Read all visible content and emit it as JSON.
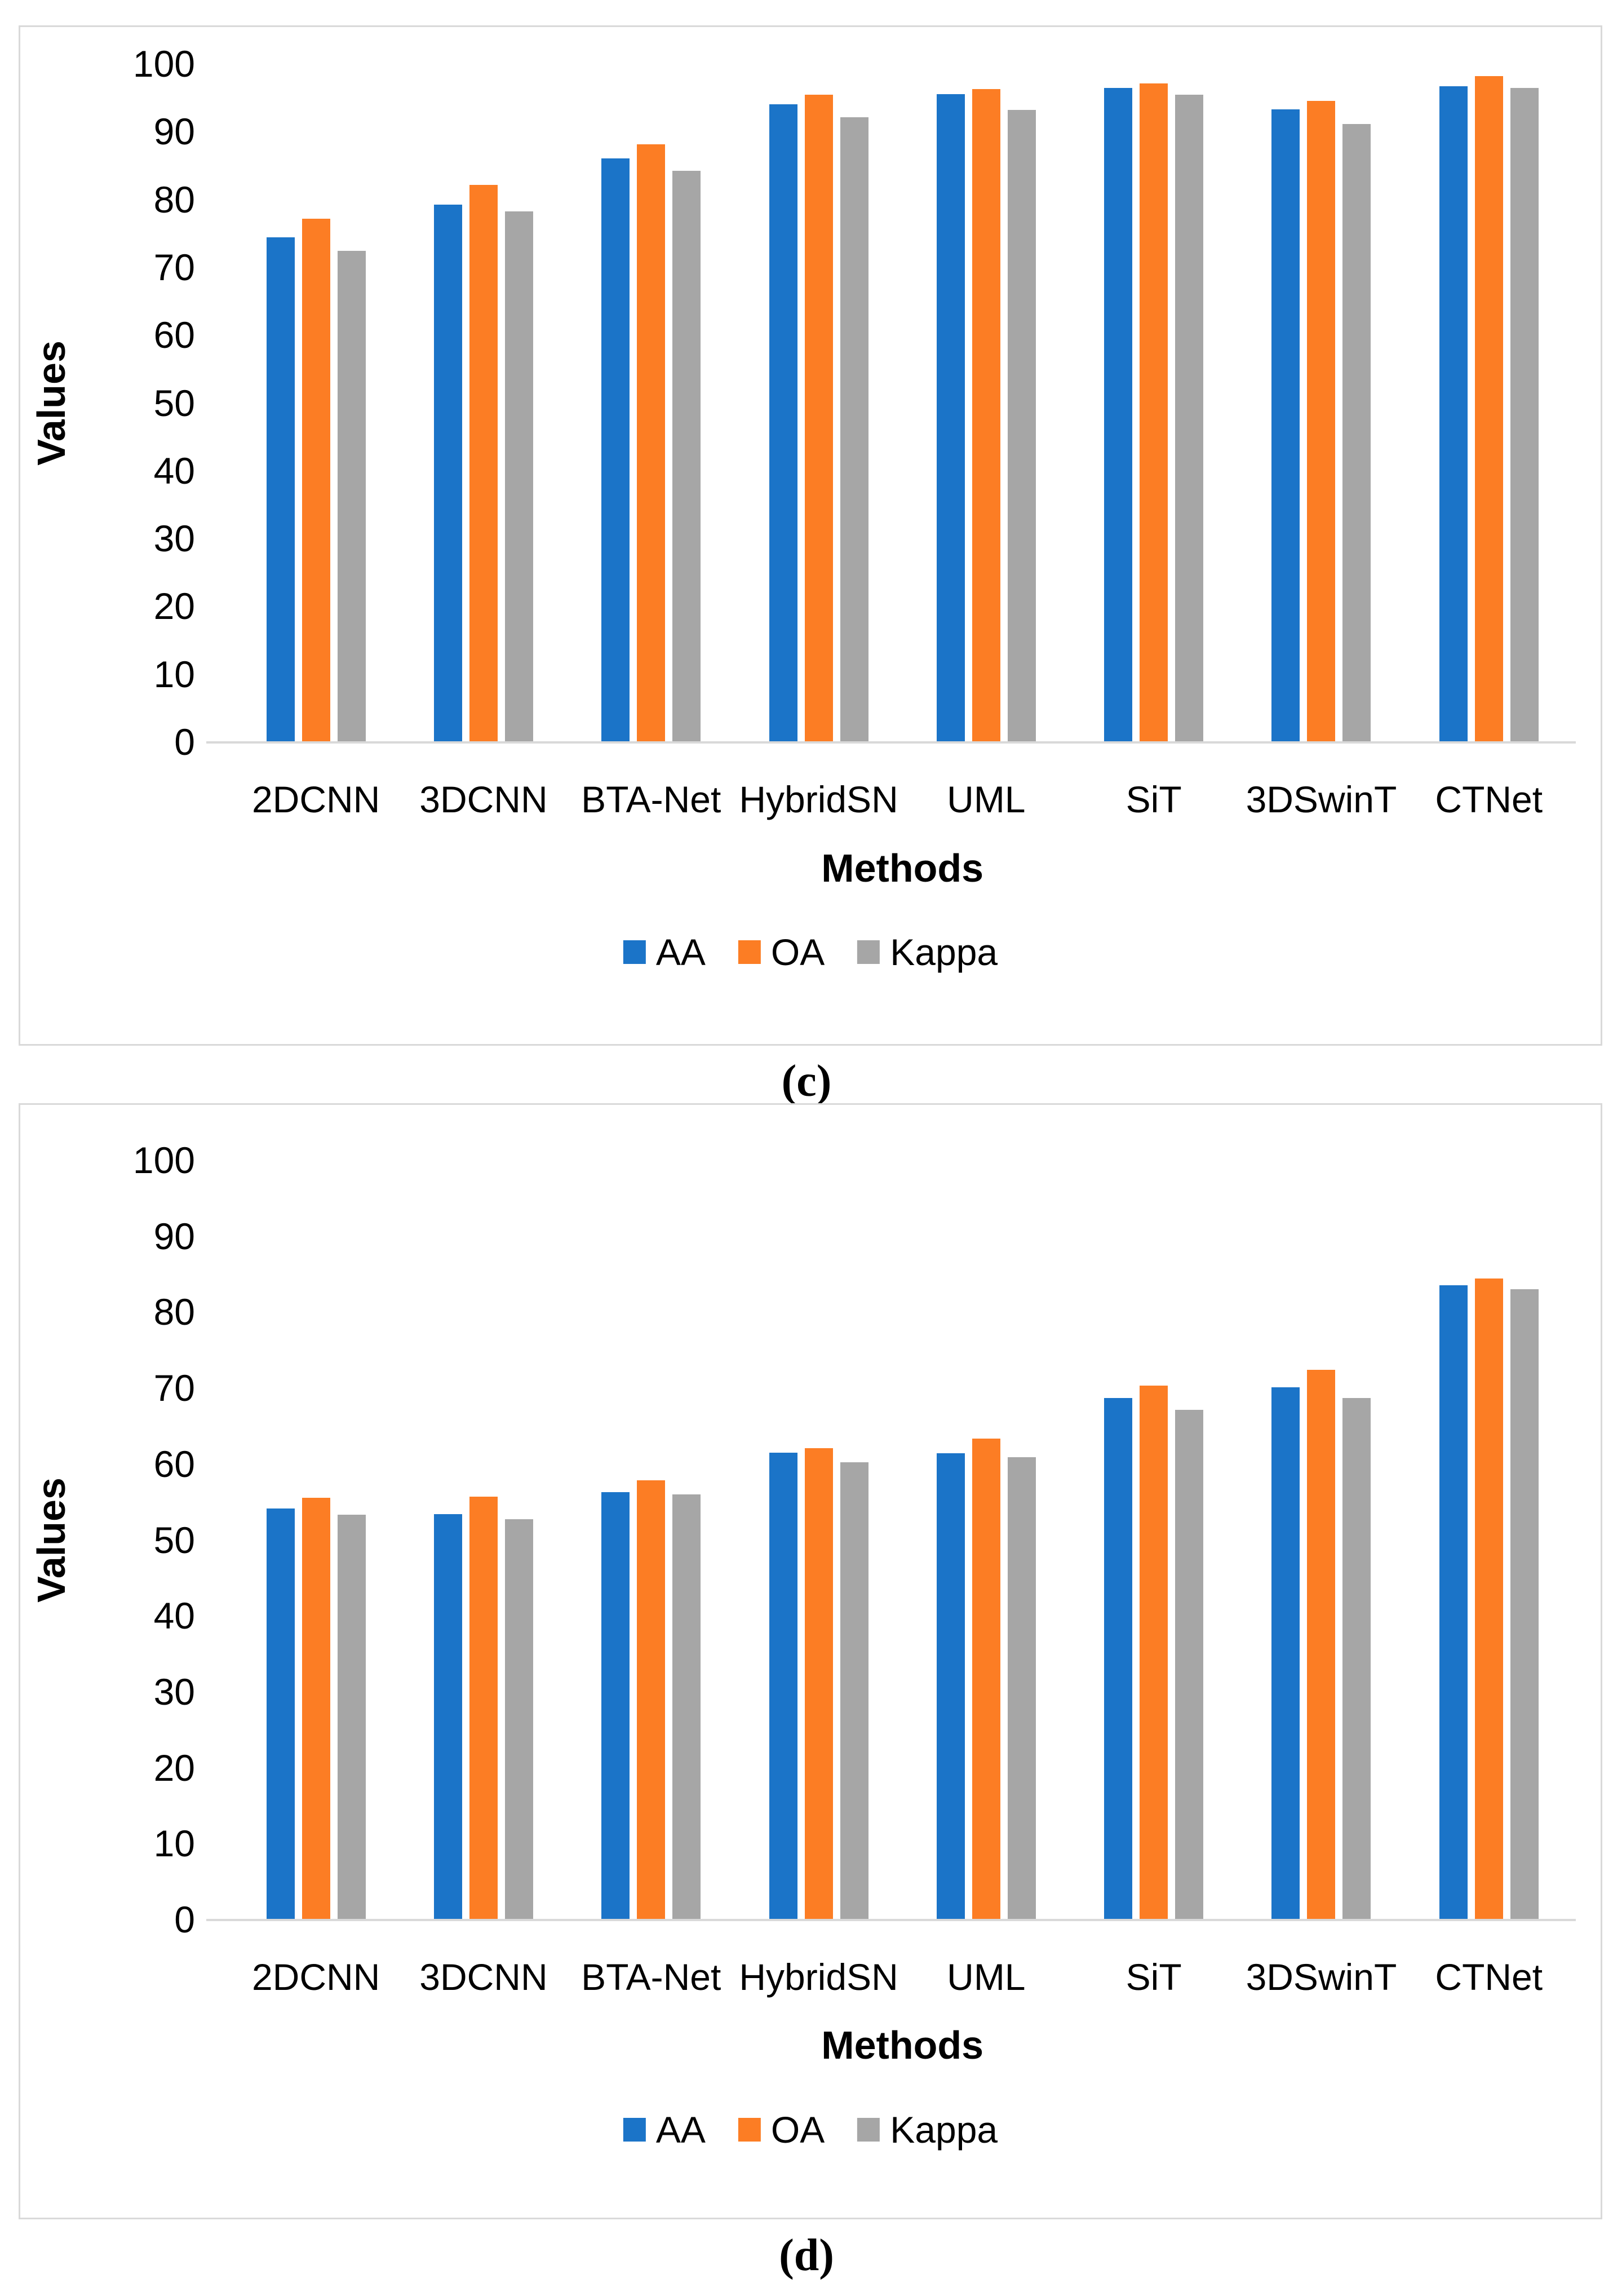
{
  "figure": {
    "background": "#FFFFFF",
    "description": "Two stacked grouped bar charts comparing methods",
    "captions": {
      "top": "(c)",
      "bottom": "(d)"
    }
  },
  "colors": {
    "aa": "#1B74C8",
    "oa": "#FC7D24",
    "kappa": "#A6A6A6",
    "axis_line": "#D9D9D9",
    "frame_border": "#D9D9D9",
    "text": "#000000"
  },
  "chart_data": [
    {
      "type": "bar",
      "caption": "(c)",
      "title": "",
      "xlabel": "Methods",
      "ylabel": "Values",
      "ylim": [
        0,
        100
      ],
      "ytick_step": 10,
      "ytick_labels": [
        "0",
        "10",
        "20",
        "30",
        "40",
        "50",
        "60",
        "70",
        "80",
        "90",
        "100"
      ],
      "grid": false,
      "legend_position": "bottom",
      "categories": [
        "2DCNN",
        "3DCNN",
        "BTA-Net",
        "HybridSN",
        "UML",
        "SiT",
        "3DSwinT",
        "CTNet"
      ],
      "series": [
        {
          "name": "AA",
          "color_key": "aa",
          "values": [
            74.4,
            79.2,
            86.0,
            94.0,
            95.5,
            96.4,
            93.3,
            96.7
          ]
        },
        {
          "name": "OA",
          "color_key": "oa",
          "values": [
            77.1,
            82.1,
            88.1,
            95.4,
            96.3,
            97.1,
            94.5,
            98.2
          ]
        },
        {
          "name": "Kappa",
          "color_key": "kappa",
          "values": [
            72.4,
            78.2,
            84.2,
            92.1,
            93.2,
            95.4,
            91.1,
            96.4
          ]
        }
      ]
    },
    {
      "type": "bar",
      "caption": "(d)",
      "title": "",
      "xlabel": "Methods",
      "ylabel": "Values",
      "ylim": [
        0,
        100
      ],
      "ytick_step": 10,
      "ytick_labels": [
        "0",
        "10",
        "20",
        "30",
        "40",
        "50",
        "60",
        "70",
        "80",
        "90",
        "100"
      ],
      "grid": false,
      "legend_position": "bottom",
      "categories": [
        "2DCNN",
        "3DCNN",
        "BTA-Net",
        "HybridSN",
        "UML",
        "SiT",
        "3DSwinT",
        "CTNet"
      ],
      "series": [
        {
          "name": "AA",
          "color_key": "aa",
          "values": [
            54.1,
            53.4,
            56.3,
            61.5,
            61.4,
            68.7,
            70.1,
            83.5
          ]
        },
        {
          "name": "OA",
          "color_key": "oa",
          "values": [
            55.5,
            55.7,
            57.8,
            62.1,
            63.3,
            70.3,
            72.4,
            84.4
          ]
        },
        {
          "name": "Kappa",
          "color_key": "kappa",
          "values": [
            53.3,
            52.7,
            56.0,
            60.2,
            60.9,
            67.1,
            68.7,
            83.0
          ]
        }
      ]
    }
  ]
}
